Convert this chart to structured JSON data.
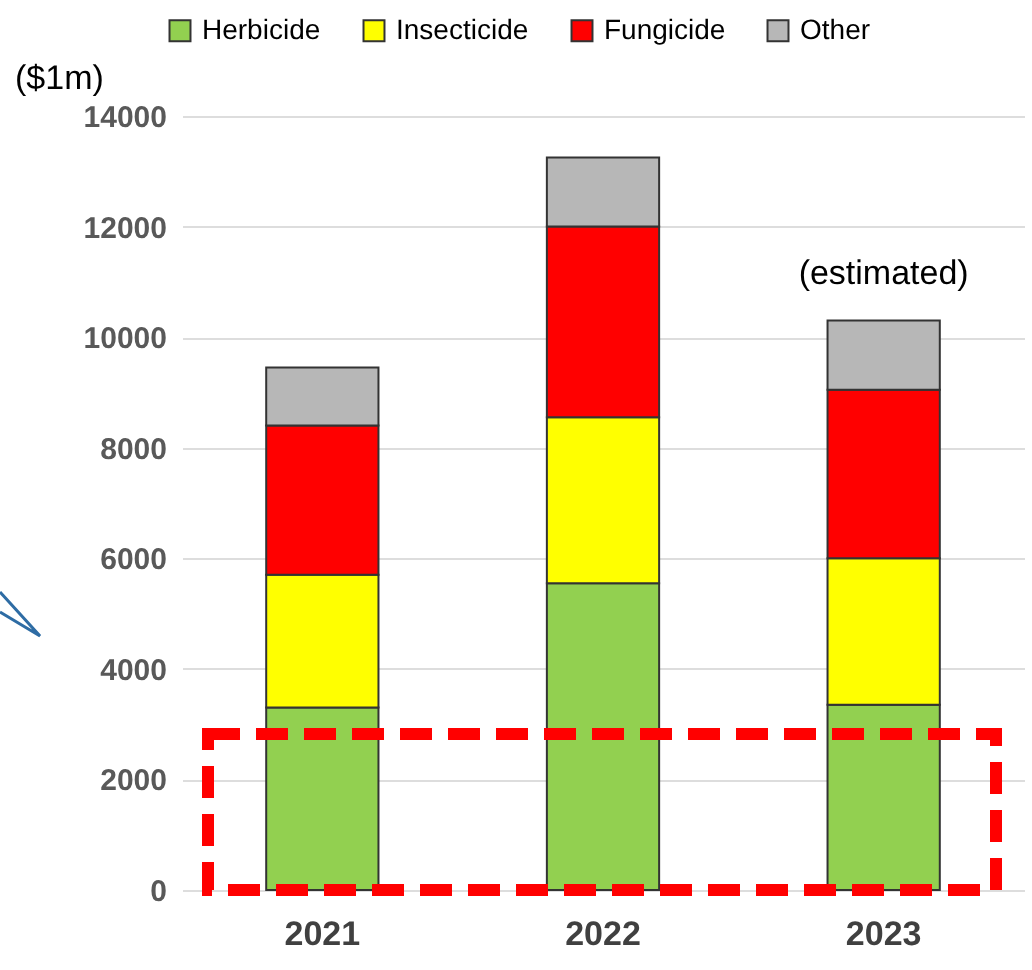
{
  "chart_data": {
    "type": "bar",
    "stacked": true,
    "ylabel": "($1m)",
    "categories": [
      "2021",
      "2022",
      "2023"
    ],
    "series": [
      {
        "name": "Herbicide",
        "color": "#92d050",
        "values": [
          3300,
          5550,
          3350
        ]
      },
      {
        "name": "Insecticide",
        "color": "#ffff00",
        "values": [
          2400,
          3000,
          2650
        ]
      },
      {
        "name": "Fungicide",
        "color": "#ff0000",
        "values": [
          2700,
          3450,
          3050
        ]
      },
      {
        "name": "Other",
        "color": "#b7b7b7",
        "values": [
          1050,
          1250,
          1250
        ]
      }
    ],
    "annotations": [
      {
        "text": "(estimated)",
        "x": "2023",
        "y": 10350
      }
    ],
    "ylim": [
      0,
      14000
    ],
    "yticks": [
      0,
      2000,
      4000,
      6000,
      8000,
      10000,
      12000,
      14000
    ],
    "grid": "y",
    "legend": "top"
  }
}
